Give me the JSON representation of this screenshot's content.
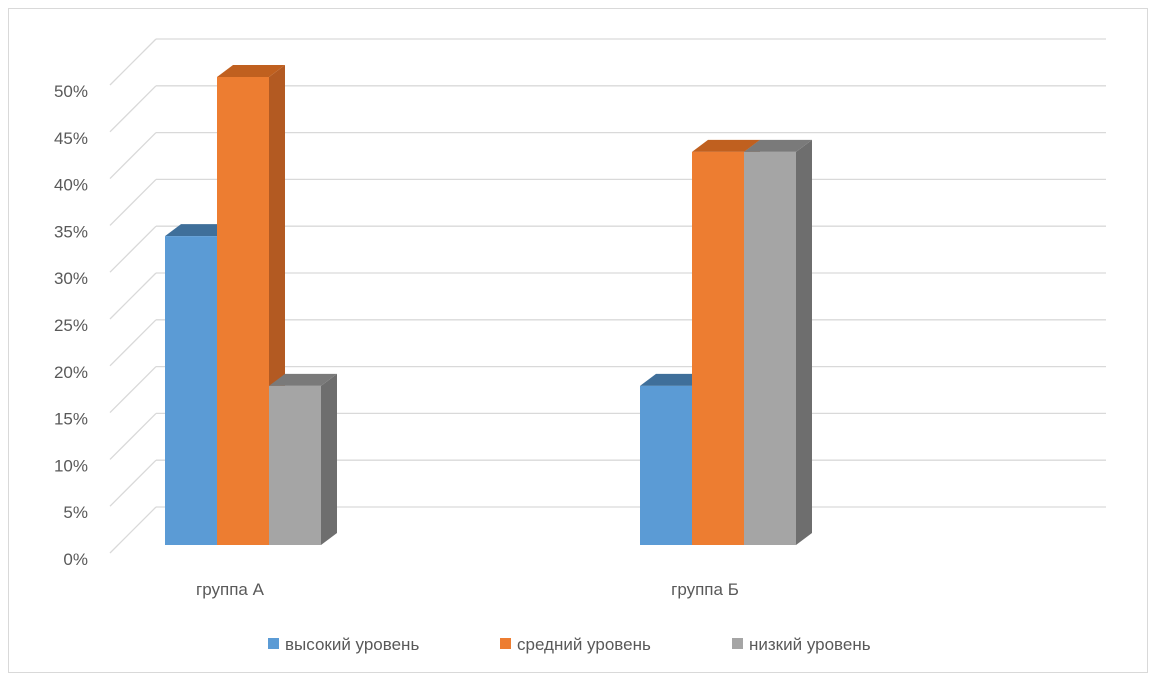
{
  "chart_data": {
    "type": "bar",
    "title": "",
    "xlabel": "",
    "ylabel": "",
    "categories": [
      "группа А",
      "группа Б"
    ],
    "series": [
      {
        "name": "высокий уровень",
        "values": [
          33,
          17
        ],
        "color": "#5b9bd5",
        "side_color": "#41719c",
        "top_color": "#3f6f9a"
      },
      {
        "name": "средний уровень",
        "values": [
          50,
          42
        ],
        "color": "#ed7d31",
        "side_color": "#b35a22",
        "top_color": "#c0601f"
      },
      {
        "name": "низкий уровень",
        "values": [
          17,
          42
        ],
        "color": "#a5a5a5",
        "side_color": "#6e6e6e",
        "top_color": "#7a7a7a"
      }
    ],
    "ylim": [
      0,
      50
    ],
    "yticks": [
      "0%",
      "5%",
      "10%",
      "15%",
      "20%",
      "25%",
      "30%",
      "35%",
      "40%",
      "45%",
      "50%"
    ],
    "grid": true,
    "legend_position": "bottom",
    "style": "3d-clustered-column"
  }
}
